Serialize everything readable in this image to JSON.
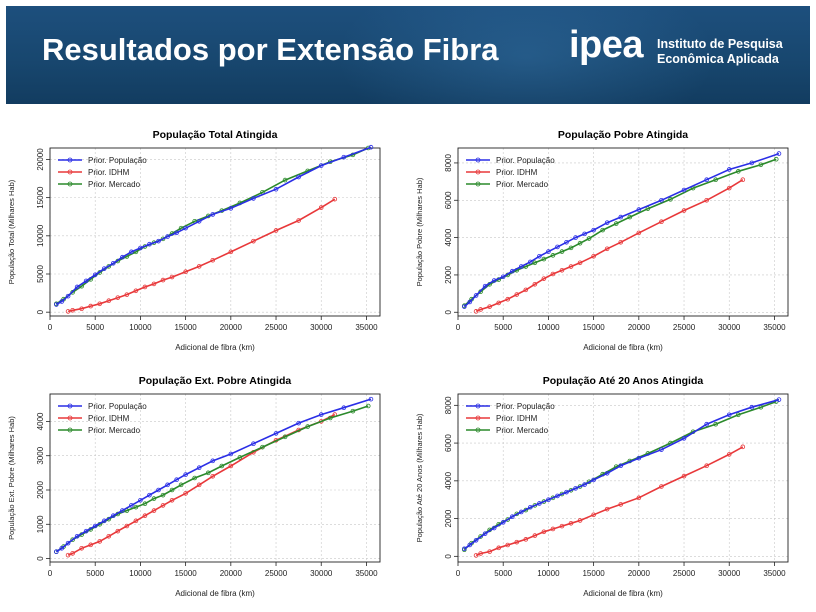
{
  "header": {
    "title": "Resultados por Extensão Fibra",
    "logo_word": "ipea",
    "logo_line1": "Instituto de Pesquisa",
    "logo_line2": "Econômica Aplicada"
  },
  "colors": {
    "banner": "#18476f",
    "series": [
      "#2a2ee6",
      "#e8383a",
      "#2b8a2b"
    ]
  },
  "chart_data": [
    {
      "type": "line",
      "title": "População Total Atingida",
      "xlabel": "Adicional de fibra (km)",
      "ylabel": "População Total (Milhares Hab)",
      "xlim": [
        0,
        36500
      ],
      "ylim": [
        -500,
        21500
      ],
      "xticks": [
        0,
        5000,
        10000,
        15000,
        20000,
        25000,
        30000,
        35000
      ],
      "yticks": [
        0,
        5000,
        10000,
        15000,
        20000
      ],
      "grid": true,
      "legend": "top-left",
      "series": [
        {
          "name": "Prior. População",
          "x": [
            700,
            1300,
            2000,
            3000,
            4000,
            5000,
            6000,
            7000,
            8000,
            9000,
            10000,
            11000,
            12000,
            13000,
            14000,
            15000,
            16500,
            18000,
            20000,
            22500,
            25000,
            27500,
            30000,
            32500,
            35500
          ],
          "y": [
            1000,
            1400,
            2100,
            3300,
            4100,
            4900,
            5700,
            6400,
            7200,
            7900,
            8400,
            8900,
            9300,
            9900,
            10400,
            11000,
            11900,
            12800,
            13600,
            14900,
            16100,
            17700,
            19200,
            20300,
            21600
          ]
        },
        {
          "name": "Prior. IDHM",
          "x": [
            2000,
            2500,
            3500,
            4500,
            5500,
            6500,
            7500,
            8500,
            9500,
            10500,
            11500,
            12500,
            13500,
            15000,
            16500,
            18000,
            20000,
            22500,
            25000,
            27500,
            30000,
            31500
          ],
          "y": [
            100,
            250,
            450,
            800,
            1100,
            1500,
            1900,
            2300,
            2800,
            3300,
            3700,
            4200,
            4600,
            5300,
            6000,
            6800,
            7900,
            9300,
            10700,
            12000,
            13700,
            14800
          ]
        },
        {
          "name": "Prior. Mercado",
          "x": [
            700,
            1500,
            2500,
            3500,
            4500,
            5500,
            6500,
            7500,
            8500,
            9500,
            10500,
            11500,
            12500,
            13500,
            14500,
            16000,
            17500,
            19000,
            21000,
            23500,
            26000,
            28500,
            31000,
            33500,
            35200
          ],
          "y": [
            1100,
            1700,
            2600,
            3400,
            4300,
            5200,
            6000,
            6700,
            7300,
            7900,
            8600,
            9100,
            9600,
            10300,
            11000,
            11900,
            12600,
            13300,
            14300,
            15700,
            17300,
            18500,
            19700,
            20600,
            21500
          ]
        }
      ]
    },
    {
      "type": "line",
      "title": "População Pobre Atingida",
      "xlabel": "Adicional de fibra (km)",
      "ylabel": "População Pobre (Milhares Hab)",
      "xlim": [
        0,
        36500
      ],
      "ylim": [
        -200,
        8800
      ],
      "xticks": [
        0,
        5000,
        10000,
        15000,
        20000,
        25000,
        30000,
        35000
      ],
      "yticks": [
        0,
        2000,
        4000,
        6000,
        8000
      ],
      "grid": true,
      "legend": "top-left",
      "series": [
        {
          "name": "Prior. População",
          "x": [
            700,
            1300,
            2000,
            3000,
            4000,
            5000,
            6000,
            7000,
            8000,
            9000,
            10000,
            11000,
            12000,
            13000,
            14000,
            15000,
            16500,
            18000,
            20000,
            22500,
            25000,
            27500,
            30000,
            32500,
            35500
          ],
          "y": [
            300,
            550,
            900,
            1400,
            1700,
            1900,
            2200,
            2450,
            2700,
            3000,
            3250,
            3500,
            3750,
            4000,
            4200,
            4400,
            4800,
            5100,
            5500,
            6000,
            6550,
            7100,
            7650,
            8000,
            8500
          ]
        },
        {
          "name": "Prior. IDHM",
          "x": [
            2000,
            2500,
            3500,
            4500,
            5500,
            6500,
            7500,
            8500,
            9500,
            10500,
            11500,
            12500,
            13500,
            15000,
            16500,
            18000,
            20000,
            22500,
            25000,
            27500,
            30000,
            31500
          ],
          "y": [
            50,
            150,
            300,
            500,
            700,
            950,
            1200,
            1500,
            1800,
            2050,
            2250,
            2450,
            2650,
            3000,
            3400,
            3750,
            4250,
            4850,
            5450,
            6000,
            6650,
            7100
          ]
        },
        {
          "name": "Prior. Mercado",
          "x": [
            700,
            1500,
            2500,
            3500,
            4500,
            5500,
            6500,
            7500,
            8500,
            9500,
            10500,
            11500,
            12500,
            13500,
            14500,
            16000,
            17500,
            19000,
            21000,
            23500,
            26000,
            28500,
            31000,
            33500,
            35200
          ],
          "y": [
            350,
            700,
            1100,
            1500,
            1750,
            2000,
            2250,
            2450,
            2650,
            2850,
            3050,
            3250,
            3450,
            3700,
            3950,
            4400,
            4750,
            5100,
            5550,
            6050,
            6650,
            7100,
            7550,
            7900,
            8200
          ]
        }
      ]
    },
    {
      "type": "line",
      "title": "População Ext. Pobre Atingida",
      "xlabel": "Adicional de fibra (km)",
      "ylabel": "População Ext. Pobre (Milhares Hab)",
      "xlim": [
        0,
        36500
      ],
      "ylim": [
        -100,
        4800
      ],
      "xticks": [
        0,
        5000,
        10000,
        15000,
        20000,
        25000,
        30000,
        35000
      ],
      "yticks": [
        0,
        1000,
        2000,
        3000,
        4000
      ],
      "grid": true,
      "legend": "top-left",
      "series": [
        {
          "name": "Prior. População",
          "x": [
            700,
            1300,
            2000,
            3000,
            4000,
            5000,
            6000,
            7000,
            8000,
            9000,
            10000,
            11000,
            12000,
            13000,
            14000,
            15000,
            16500,
            18000,
            20000,
            22500,
            25000,
            27500,
            30000,
            32500,
            35500
          ],
          "y": [
            200,
            300,
            450,
            650,
            800,
            950,
            1100,
            1250,
            1400,
            1550,
            1700,
            1850,
            2000,
            2150,
            2300,
            2450,
            2650,
            2850,
            3050,
            3350,
            3650,
            3950,
            4200,
            4400,
            4650
          ]
        },
        {
          "name": "Prior. IDHM",
          "x": [
            2000,
            2500,
            3500,
            4500,
            5500,
            6500,
            7500,
            8500,
            9500,
            10500,
            11500,
            12500,
            13500,
            15000,
            16500,
            18000,
            20000,
            22500,
            25000,
            27500,
            30000,
            31500
          ],
          "y": [
            100,
            150,
            300,
            400,
            500,
            650,
            800,
            950,
            1100,
            1250,
            1400,
            1550,
            1700,
            1900,
            2150,
            2400,
            2700,
            3100,
            3450,
            3750,
            4000,
            4200
          ]
        },
        {
          "name": "Prior. Mercado",
          "x": [
            700,
            1500,
            2500,
            3500,
            4500,
            5500,
            6500,
            7500,
            8500,
            9500,
            10500,
            11500,
            12500,
            13500,
            14500,
            16000,
            17500,
            19000,
            21000,
            23500,
            26000,
            28500,
            31000,
            33500,
            35200
          ],
          "y": [
            200,
            350,
            550,
            700,
            850,
            1000,
            1150,
            1300,
            1400,
            1500,
            1600,
            1750,
            1850,
            2000,
            2150,
            2350,
            2500,
            2700,
            2950,
            3250,
            3550,
            3850,
            4100,
            4300,
            4450
          ]
        }
      ]
    },
    {
      "type": "line",
      "title": "População Até 20 Anos Atingida",
      "xlabel": "Adicional de fibra (km)",
      "ylabel": "População Até 20 Anos (Milhares Hab)",
      "xlim": [
        0,
        36500
      ],
      "ylim": [
        -300,
        8600
      ],
      "xticks": [
        0,
        5000,
        10000,
        15000,
        20000,
        25000,
        30000,
        35000
      ],
      "yticks": [
        0,
        2000,
        4000,
        6000,
        8000
      ],
      "grid": true,
      "legend": "top-left",
      "series": [
        {
          "name": "Prior. População",
          "x": [
            700,
            1300,
            2000,
            3000,
            4000,
            5000,
            6000,
            7000,
            8000,
            9000,
            10000,
            11000,
            12000,
            13000,
            14000,
            15000,
            16500,
            18000,
            20000,
            22500,
            25000,
            27500,
            30000,
            32500,
            35500
          ],
          "y": [
            400,
            600,
            850,
            1200,
            1500,
            1800,
            2100,
            2350,
            2600,
            2800,
            3000,
            3200,
            3400,
            3600,
            3800,
            4050,
            4400,
            4800,
            5200,
            5650,
            6250,
            7000,
            7500,
            7900,
            8300
          ]
        },
        {
          "name": "Prior. IDHM",
          "x": [
            2000,
            2500,
            3500,
            4500,
            5500,
            6500,
            7500,
            8500,
            9500,
            10500,
            11500,
            12500,
            13500,
            15000,
            16500,
            18000,
            20000,
            22500,
            25000,
            27500,
            30000,
            31500
          ],
          "y": [
            50,
            150,
            250,
            450,
            600,
            750,
            900,
            1100,
            1300,
            1450,
            1600,
            1750,
            1900,
            2200,
            2500,
            2750,
            3100,
            3700,
            4250,
            4800,
            5400,
            5800
          ]
        },
        {
          "name": "Prior. Mercado",
          "x": [
            700,
            1500,
            2500,
            3500,
            4500,
            5500,
            6500,
            7500,
            8500,
            9500,
            10500,
            11500,
            12500,
            13500,
            14500,
            16000,
            17500,
            19000,
            21000,
            23500,
            26000,
            28500,
            31000,
            33500,
            35200
          ],
          "y": [
            350,
            700,
            1050,
            1400,
            1700,
            1950,
            2250,
            2450,
            2700,
            2900,
            3100,
            3300,
            3500,
            3700,
            3950,
            4350,
            4750,
            5050,
            5450,
            6000,
            6600,
            7000,
            7500,
            7900,
            8200
          ]
        }
      ]
    }
  ]
}
